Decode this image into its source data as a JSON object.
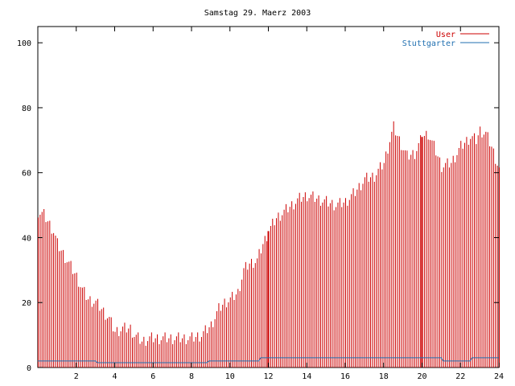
{
  "chart_data": {
    "type": "bar",
    "title": "Samstag 29. Maerz 2003",
    "xlabel": "",
    "ylabel": "",
    "xlim": [
      0,
      24
    ],
    "ylim": [
      0,
      105
    ],
    "x_ticks": [
      2,
      4,
      6,
      8,
      10,
      12,
      14,
      16,
      18,
      20,
      22,
      24
    ],
    "x_tick_labels": [
      "2",
      "4",
      "6",
      "8",
      "10",
      "12",
      "14",
      "16",
      "18",
      "20",
      "22",
      "24"
    ],
    "y_ticks": [
      0,
      20,
      40,
      60,
      80,
      100
    ],
    "y_tick_labels": [
      "0",
      "20",
      "40",
      "60",
      "80",
      "100"
    ],
    "grid": false,
    "legend": "top-right",
    "colors": {
      "user": "#cc0000",
      "stuttgarter": "#1f6fb0",
      "axis": "#000000"
    },
    "bar_interval_hours": 0.1,
    "series": [
      {
        "name": "User",
        "kind": "impulses",
        "hourly_anchors": [
          [
            0,
            48
          ],
          [
            0.3,
            47
          ],
          [
            0.5,
            45
          ],
          [
            0.8,
            42
          ],
          [
            1,
            38
          ],
          [
            1.3,
            35
          ],
          [
            1.6,
            32
          ],
          [
            2,
            28
          ],
          [
            2.3,
            24
          ],
          [
            2.6,
            21
          ],
          [
            3,
            20
          ],
          [
            3.3,
            18
          ],
          [
            3.7,
            15
          ],
          [
            4,
            11
          ],
          [
            4.4,
            12
          ],
          [
            4.8,
            12
          ],
          [
            5,
            10
          ],
          [
            5.4,
            8
          ],
          [
            5.8,
            9
          ],
          [
            6.2,
            9
          ],
          [
            6.8,
            9
          ],
          [
            7.4,
            9
          ],
          [
            8,
            9
          ],
          [
            8.5,
            10
          ],
          [
            9,
            13
          ],
          [
            9.4,
            18
          ],
          [
            9.7,
            20
          ],
          [
            10,
            21
          ],
          [
            10.4,
            23
          ],
          [
            10.7,
            30
          ],
          [
            11,
            32
          ],
          [
            11.4,
            33
          ],
          [
            11.7,
            38
          ],
          [
            12,
            42
          ],
          [
            12.4,
            46
          ],
          [
            12.8,
            48
          ],
          [
            13.2,
            50
          ],
          [
            13.6,
            52
          ],
          [
            14,
            53
          ],
          [
            14.5,
            52
          ],
          [
            15,
            51
          ],
          [
            15.5,
            50
          ],
          [
            16,
            51
          ],
          [
            16.5,
            54
          ],
          [
            17,
            58
          ],
          [
            17.5,
            59
          ],
          [
            18,
            63
          ],
          [
            18.3,
            70
          ],
          [
            18.5,
            74
          ],
          [
            18.8,
            70
          ],
          [
            19.2,
            65
          ],
          [
            19.6,
            66
          ],
          [
            20,
            71
          ],
          [
            20.3,
            72
          ],
          [
            20.6,
            68
          ],
          [
            21,
            62
          ],
          [
            21.5,
            63
          ],
          [
            22,
            68
          ],
          [
            22.5,
            71
          ],
          [
            22.8,
            70
          ],
          [
            23,
            73
          ],
          [
            23.3,
            72
          ],
          [
            23.6,
            68
          ],
          [
            24,
            61
          ]
        ],
        "highlight_x": [
          12,
          20
        ]
      },
      {
        "name": "Stuttgarter",
        "kind": "line",
        "points": [
          [
            0,
            2
          ],
          [
            3,
            2
          ],
          [
            3.1,
            1.5
          ],
          [
            8.8,
            1.5
          ],
          [
            8.9,
            2
          ],
          [
            11.5,
            2
          ],
          [
            11.6,
            3
          ],
          [
            21,
            3
          ],
          [
            21.1,
            2
          ],
          [
            22.5,
            2
          ],
          [
            22.6,
            3
          ],
          [
            24,
            3
          ]
        ]
      }
    ]
  }
}
